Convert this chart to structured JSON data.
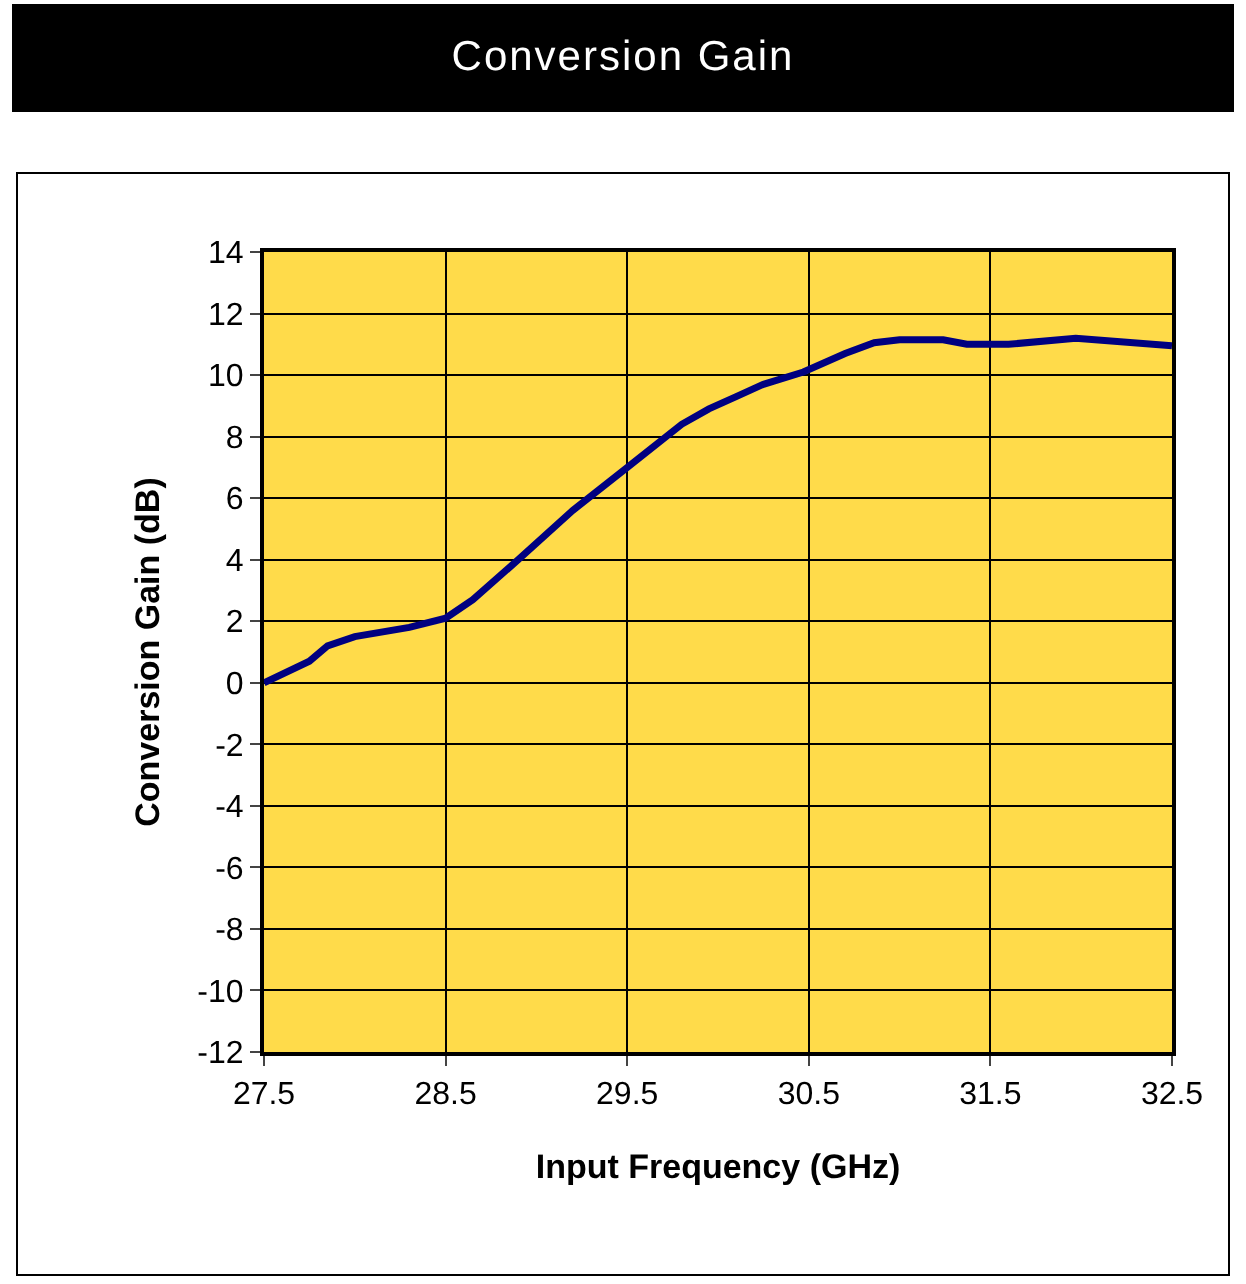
{
  "chart_data": {
    "type": "line",
    "title": "Conversion Gain",
    "xlabel": "Input Frequency (GHz)",
    "ylabel": "Conversion Gain (dB)",
    "x": [
      27.5,
      27.75,
      27.85,
      28.0,
      28.3,
      28.5,
      28.65,
      28.9,
      29.2,
      29.5,
      29.8,
      29.95,
      30.1,
      30.25,
      30.47,
      30.7,
      30.86,
      31.0,
      31.24,
      31.37,
      31.6,
      31.97,
      32.5
    ],
    "series": [
      {
        "color": "#000080",
        "values": [
          0,
          0.7,
          1.2,
          1.5,
          1.8,
          2.1,
          2.7,
          4.0,
          5.6,
          7.0,
          8.4,
          8.9,
          9.3,
          9.7,
          10.1,
          10.7,
          11.05,
          11.15,
          11.15,
          11.0,
          11.0,
          11.2,
          10.95
        ]
      }
    ],
    "xlim": [
      27.5,
      32.5
    ],
    "xticks": [
      27.5,
      28.5,
      29.5,
      30.5,
      31.5,
      32.5
    ],
    "ylim": [
      -12,
      14
    ],
    "yticks": [
      -12,
      -10,
      -8,
      -6,
      -4,
      -2,
      0,
      2,
      4,
      6,
      8,
      10,
      12,
      14
    ],
    "grid": true,
    "legend": false,
    "marker": "none",
    "line_style": "solid"
  }
}
